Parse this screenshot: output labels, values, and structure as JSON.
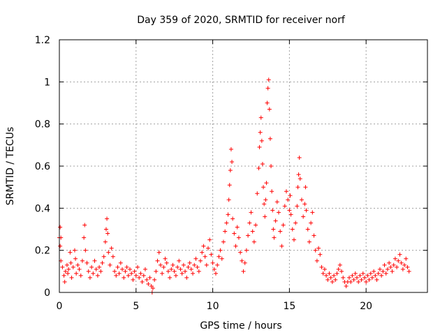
{
  "chart_data": {
    "type": "scatter",
    "title": "Day 359 of 2020, SRMTID for receiver norf",
    "xlabel": "GPS time / hours",
    "ylabel": "SRMTID / TECUs",
    "xlim": [
      0,
      24
    ],
    "ylim": [
      0,
      1.2
    ],
    "x_ticks": [
      0,
      5,
      10,
      15,
      20
    ],
    "x_tick_labels": [
      "0",
      "5",
      "10",
      "15",
      "20"
    ],
    "y_ticks": [
      0,
      0.2,
      0.4,
      0.6,
      0.8,
      1.0,
      1.2
    ],
    "y_tick_labels": [
      "0",
      "0.2",
      "0.4",
      "0.6",
      "0.8",
      "1",
      "1.2"
    ],
    "grid": true,
    "marker": "+",
    "color": "#ff0000",
    "series": [
      {
        "name": "norf",
        "points": [
          [
            0.0,
            0.26
          ],
          [
            0.05,
            0.31
          ],
          [
            0.05,
            0.22
          ],
          [
            0.1,
            0.26
          ],
          [
            0.1,
            0.15
          ],
          [
            0.2,
            0.12
          ],
          [
            0.3,
            0.08
          ],
          [
            0.35,
            0.05
          ],
          [
            0.4,
            0.1
          ],
          [
            0.5,
            0.13
          ],
          [
            0.55,
            0.09
          ],
          [
            0.6,
            0.11
          ],
          [
            0.7,
            0.19
          ],
          [
            0.75,
            0.14
          ],
          [
            0.8,
            0.07
          ],
          [
            0.9,
            0.12
          ],
          [
            1.0,
            0.2
          ],
          [
            1.05,
            0.16
          ],
          [
            1.1,
            0.09
          ],
          [
            1.2,
            0.13
          ],
          [
            1.3,
            0.11
          ],
          [
            1.4,
            0.08
          ],
          [
            1.5,
            0.15
          ],
          [
            1.6,
            0.26
          ],
          [
            1.65,
            0.32
          ],
          [
            1.7,
            0.2
          ],
          [
            1.8,
            0.14
          ],
          [
            1.9,
            0.1
          ],
          [
            2.0,
            0.07
          ],
          [
            2.1,
            0.12
          ],
          [
            2.2,
            0.09
          ],
          [
            2.3,
            0.15
          ],
          [
            2.4,
            0.11
          ],
          [
            2.5,
            0.08
          ],
          [
            2.6,
            0.12
          ],
          [
            2.7,
            0.1
          ],
          [
            2.8,
            0.14
          ],
          [
            2.9,
            0.17
          ],
          [
            3.0,
            0.24
          ],
          [
            3.05,
            0.3
          ],
          [
            3.1,
            0.35
          ],
          [
            3.15,
            0.28
          ],
          [
            3.2,
            0.19
          ],
          [
            3.3,
            0.13
          ],
          [
            3.4,
            0.21
          ],
          [
            3.5,
            0.17
          ],
          [
            3.6,
            0.1
          ],
          [
            3.7,
            0.08
          ],
          [
            3.8,
            0.12
          ],
          [
            3.9,
            0.09
          ],
          [
            4.0,
            0.14
          ],
          [
            4.1,
            0.11
          ],
          [
            4.2,
            0.07
          ],
          [
            4.3,
            0.1
          ],
          [
            4.4,
            0.12
          ],
          [
            4.5,
            0.08
          ],
          [
            4.6,
            0.11
          ],
          [
            4.7,
            0.09
          ],
          [
            4.8,
            0.06
          ],
          [
            4.9,
            0.1
          ],
          [
            5.0,
            0.08
          ],
          [
            5.1,
            0.12
          ],
          [
            5.2,
            0.07
          ],
          [
            5.3,
            0.09
          ],
          [
            5.4,
            0.05
          ],
          [
            5.5,
            0.08
          ],
          [
            5.6,
            0.11
          ],
          [
            5.7,
            0.06
          ],
          [
            5.8,
            0.04
          ],
          [
            5.9,
            0.07
          ],
          [
            6.0,
            0.03
          ],
          [
            6.05,
            0.0
          ],
          [
            6.1,
            0.02
          ],
          [
            6.2,
            0.06
          ],
          [
            6.3,
            0.1
          ],
          [
            6.4,
            0.15
          ],
          [
            6.5,
            0.19
          ],
          [
            6.6,
            0.13
          ],
          [
            6.7,
            0.09
          ],
          [
            6.8,
            0.12
          ],
          [
            6.9,
            0.16
          ],
          [
            7.0,
            0.14
          ],
          [
            7.1,
            0.1
          ],
          [
            7.2,
            0.07
          ],
          [
            7.3,
            0.11
          ],
          [
            7.4,
            0.13
          ],
          [
            7.5,
            0.1
          ],
          [
            7.6,
            0.08
          ],
          [
            7.7,
            0.12
          ],
          [
            7.8,
            0.15
          ],
          [
            7.9,
            0.11
          ],
          [
            8.0,
            0.09
          ],
          [
            8.1,
            0.13
          ],
          [
            8.2,
            0.1
          ],
          [
            8.3,
            0.07
          ],
          [
            8.4,
            0.12
          ],
          [
            8.5,
            0.14
          ],
          [
            8.6,
            0.11
          ],
          [
            8.7,
            0.09
          ],
          [
            8.8,
            0.13
          ],
          [
            8.9,
            0.16
          ],
          [
            9.0,
            0.12
          ],
          [
            9.1,
            0.1
          ],
          [
            9.2,
            0.15
          ],
          [
            9.3,
            0.19
          ],
          [
            9.4,
            0.22
          ],
          [
            9.5,
            0.17
          ],
          [
            9.6,
            0.13
          ],
          [
            9.7,
            0.21
          ],
          [
            9.8,
            0.25
          ],
          [
            9.9,
            0.18
          ],
          [
            10.0,
            0.14
          ],
          [
            10.1,
            0.11
          ],
          [
            10.2,
            0.09
          ],
          [
            10.3,
            0.13
          ],
          [
            10.4,
            0.17
          ],
          [
            10.5,
            0.2
          ],
          [
            10.6,
            0.16
          ],
          [
            10.7,
            0.24
          ],
          [
            10.8,
            0.29
          ],
          [
            10.9,
            0.33
          ],
          [
            11.0,
            0.37
          ],
          [
            11.05,
            0.44
          ],
          [
            11.1,
            0.51
          ],
          [
            11.15,
            0.58
          ],
          [
            11.2,
            0.68
          ],
          [
            11.25,
            0.62
          ],
          [
            11.3,
            0.35
          ],
          [
            11.4,
            0.28
          ],
          [
            11.5,
            0.22
          ],
          [
            11.6,
            0.31
          ],
          [
            11.7,
            0.26
          ],
          [
            11.8,
            0.19
          ],
          [
            11.9,
            0.15
          ],
          [
            12.0,
            0.1
          ],
          [
            12.1,
            0.14
          ],
          [
            12.2,
            0.2
          ],
          [
            12.3,
            0.27
          ],
          [
            12.4,
            0.33
          ],
          [
            12.5,
            0.38
          ],
          [
            12.6,
            0.29
          ],
          [
            12.7,
            0.24
          ],
          [
            12.8,
            0.32
          ],
          [
            12.9,
            0.47
          ],
          [
            13.0,
            0.59
          ],
          [
            13.05,
            0.69
          ],
          [
            13.1,
            0.76
          ],
          [
            13.15,
            0.83
          ],
          [
            13.2,
            0.72
          ],
          [
            13.25,
            0.61
          ],
          [
            13.3,
            0.5
          ],
          [
            13.35,
            0.42
          ],
          [
            13.4,
            0.36
          ],
          [
            13.45,
            0.44
          ],
          [
            13.5,
            0.52
          ],
          [
            13.55,
            0.9
          ],
          [
            13.6,
            0.97
          ],
          [
            13.65,
            1.01
          ],
          [
            13.7,
            0.87
          ],
          [
            13.75,
            0.73
          ],
          [
            13.8,
            0.6
          ],
          [
            13.85,
            0.48
          ],
          [
            13.9,
            0.39
          ],
          [
            13.95,
            0.3
          ],
          [
            14.0,
            0.26
          ],
          [
            14.1,
            0.34
          ],
          [
            14.2,
            0.43
          ],
          [
            14.3,
            0.38
          ],
          [
            14.4,
            0.29
          ],
          [
            14.5,
            0.22
          ],
          [
            14.6,
            0.32
          ],
          [
            14.7,
            0.41
          ],
          [
            14.8,
            0.48
          ],
          [
            14.9,
            0.44
          ],
          [
            15.0,
            0.39
          ],
          [
            15.05,
            0.46
          ],
          [
            15.1,
            0.37
          ],
          [
            15.2,
            0.3
          ],
          [
            15.3,
            0.25
          ],
          [
            15.4,
            0.33
          ],
          [
            15.5,
            0.41
          ],
          [
            15.55,
            0.5
          ],
          [
            15.6,
            0.56
          ],
          [
            15.65,
            0.64
          ],
          [
            15.7,
            0.54
          ],
          [
            15.8,
            0.44
          ],
          [
            15.9,
            0.36
          ],
          [
            16.0,
            0.42
          ],
          [
            16.05,
            0.5
          ],
          [
            16.1,
            0.39
          ],
          [
            16.2,
            0.3
          ],
          [
            16.3,
            0.24
          ],
          [
            16.4,
            0.33
          ],
          [
            16.5,
            0.38
          ],
          [
            16.6,
            0.27
          ],
          [
            16.7,
            0.2
          ],
          [
            16.8,
            0.15
          ],
          [
            16.9,
            0.21
          ],
          [
            17.0,
            0.18
          ],
          [
            17.1,
            0.12
          ],
          [
            17.2,
            0.09
          ],
          [
            17.3,
            0.11
          ],
          [
            17.4,
            0.08
          ],
          [
            17.5,
            0.06
          ],
          [
            17.6,
            0.09
          ],
          [
            17.7,
            0.07
          ],
          [
            17.8,
            0.05
          ],
          [
            17.9,
            0.08
          ],
          [
            18.0,
            0.06
          ],
          [
            18.1,
            0.09
          ],
          [
            18.2,
            0.11
          ],
          [
            18.3,
            0.13
          ],
          [
            18.4,
            0.1
          ],
          [
            18.5,
            0.07
          ],
          [
            18.6,
            0.05
          ],
          [
            18.7,
            0.03
          ],
          [
            18.8,
            0.05
          ],
          [
            18.9,
            0.07
          ],
          [
            19.0,
            0.05
          ],
          [
            19.1,
            0.08
          ],
          [
            19.2,
            0.06
          ],
          [
            19.3,
            0.09
          ],
          [
            19.4,
            0.07
          ],
          [
            19.5,
            0.05
          ],
          [
            19.6,
            0.08
          ],
          [
            19.7,
            0.06
          ],
          [
            19.8,
            0.09
          ],
          [
            19.9,
            0.07
          ],
          [
            20.0,
            0.05
          ],
          [
            20.1,
            0.08
          ],
          [
            20.2,
            0.06
          ],
          [
            20.3,
            0.09
          ],
          [
            20.4,
            0.07
          ],
          [
            20.5,
            0.1
          ],
          [
            20.6,
            0.08
          ],
          [
            20.7,
            0.06
          ],
          [
            20.8,
            0.09
          ],
          [
            20.9,
            0.11
          ],
          [
            21.0,
            0.08
          ],
          [
            21.1,
            0.1
          ],
          [
            21.2,
            0.13
          ],
          [
            21.3,
            0.09
          ],
          [
            21.4,
            0.11
          ],
          [
            21.5,
            0.14
          ],
          [
            21.6,
            0.12
          ],
          [
            21.7,
            0.1
          ],
          [
            21.8,
            0.13
          ],
          [
            21.9,
            0.16
          ],
          [
            22.0,
            0.12
          ],
          [
            22.1,
            0.15
          ],
          [
            22.2,
            0.18
          ],
          [
            22.3,
            0.14
          ],
          [
            22.4,
            0.11
          ],
          [
            22.5,
            0.13
          ],
          [
            22.6,
            0.16
          ],
          [
            22.7,
            0.12
          ],
          [
            22.8,
            0.1
          ]
        ]
      }
    ]
  }
}
